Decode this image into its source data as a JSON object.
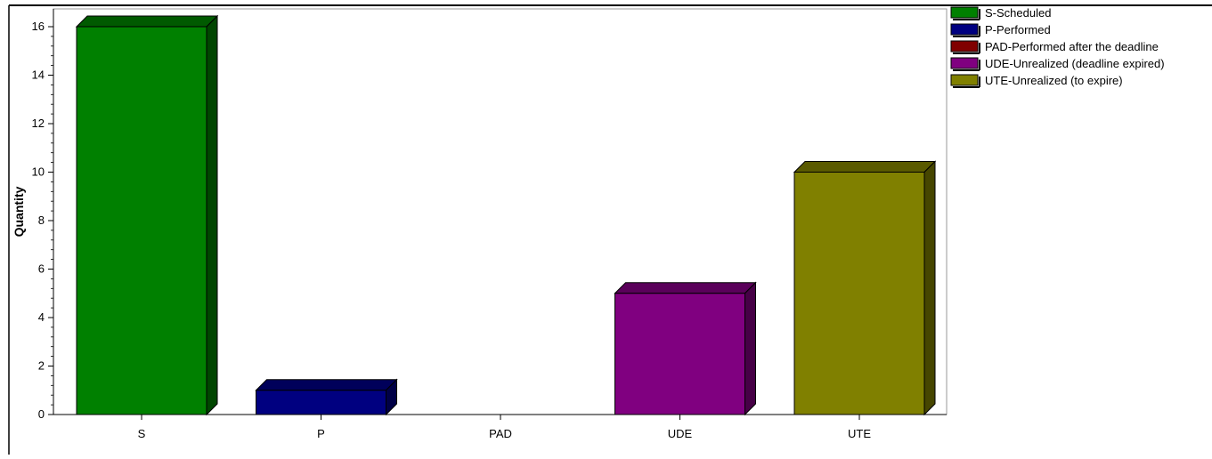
{
  "chart_data": {
    "type": "bar",
    "categories": [
      "S",
      "P",
      "PAD",
      "UDE",
      "UTE"
    ],
    "values": [
      16,
      1,
      0,
      5,
      10
    ],
    "colors": [
      "#008000",
      "#000080",
      "#800000",
      "#800080",
      "#808000"
    ],
    "title": "",
    "xlabel": "",
    "ylabel": "Quantity",
    "ylim": [
      0,
      16
    ],
    "yticks": [
      0,
      2,
      4,
      6,
      8,
      10,
      12,
      14,
      16
    ],
    "grid": false,
    "bar_style": "3d",
    "legend_position": "top-right",
    "legend": [
      "S-Scheduled",
      "P-Performed",
      "PAD-Performed after the deadline",
      "UDE-Unrealized (deadline expired)",
      "UTE-Unrealized (to expire)"
    ]
  }
}
